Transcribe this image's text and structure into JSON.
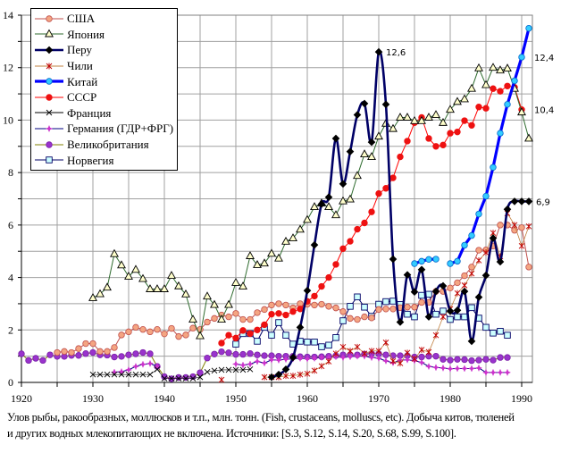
{
  "chart_data": {
    "type": "line",
    "title": "",
    "xlabel": "",
    "ylabel": "",
    "xlim": [
      1920,
      1991.5
    ],
    "ylim": [
      0,
      14
    ],
    "x_ticks": [
      1920,
      1930,
      1940,
      1950,
      1960,
      1970,
      1980,
      1990
    ],
    "y_ticks": [
      0,
      2,
      4,
      6,
      8,
      10,
      12,
      14
    ],
    "grid": true,
    "legend_position": "top-left",
    "series": [
      {
        "name": "США",
        "marker": "circle",
        "line_color": "#c0504d",
        "marker_fill": "#f4a582",
        "marker_stroke": "#c0504d",
        "line_width": 1,
        "start": 1925,
        "values": [
          1.14,
          1.18,
          1.14,
          1.29,
          1.48,
          1.48,
          1.18,
          1.18,
          1.33,
          1.81,
          1.93,
          2.1,
          2.02,
          1.93,
          2.02,
          1.85,
          2.06,
          1.75,
          1.81,
          2.07,
          2.02,
          2.3,
          2.44,
          2.57,
          2.5,
          2.63,
          2.4,
          2.4,
          2.66,
          2.78,
          2.95,
          3.0,
          2.95,
          2.84,
          3.0,
          2.98,
          2.95,
          2.98,
          2.9,
          2.84,
          2.7,
          2.44,
          2.4,
          2.5,
          2.46,
          2.78,
          2.8,
          2.8,
          2.85,
          2.87,
          2.87,
          3.05,
          3.05,
          3.47,
          3.47,
          3.6,
          3.8,
          4.07,
          4.4,
          5.04,
          5.05,
          5.2,
          6.0,
          6.0,
          5.8,
          5.9,
          4.4
        ]
      },
      {
        "name": "Япония",
        "marker": "triangle",
        "line_color": "#2e6b2e",
        "marker_fill": "#ffffcc",
        "marker_stroke": "#000000",
        "line_width": 1,
        "start": 1930,
        "values": [
          3.22,
          3.37,
          3.62,
          4.9,
          4.47,
          4.04,
          4.3,
          3.95,
          3.56,
          3.56,
          3.56,
          4.07,
          3.67,
          3.36,
          2.4,
          1.77,
          3.28,
          2.96,
          2.4,
          2.96,
          3.8,
          3.66,
          4.82,
          4.48,
          4.54,
          4.91,
          4.73,
          5.37,
          5.5,
          5.83,
          6.2,
          6.69,
          6.83,
          6.69,
          6.38,
          6.91,
          6.98,
          7.88,
          8.7,
          8.6,
          9.38,
          9.87,
          9.67,
          10.1,
          10.1,
          9.97,
          9.97,
          10.1,
          10.2,
          9.9,
          10.4,
          10.7,
          10.8,
          11.2,
          11.98,
          11.34,
          12.0,
          11.9,
          11.97,
          11.2,
          10.3,
          9.3
        ]
      },
      {
        "name": "Перу",
        "marker": "diamond",
        "line_color": "#000066",
        "marker_fill": "#000000",
        "marker_stroke": "#000000",
        "line_width": 2.6,
        "smooth": true,
        "start": 1955,
        "values": [
          0.2,
          0.3,
          0.5,
          0.95,
          2.1,
          3.5,
          5.24,
          6.8,
          7.06,
          9.3,
          7.57,
          8.8,
          10.2,
          10.63,
          9.16,
          12.6,
          10.6,
          4.7,
          2.3,
          4.1,
          3.45,
          4.3,
          2.5,
          3.47,
          3.68,
          2.72,
          2.75,
          3.47,
          1.57,
          3.25,
          4.08,
          5.5,
          4.6,
          6.6,
          6.9,
          6.9,
          6.9
        ]
      },
      {
        "name": "Чили",
        "marker": "asterisk",
        "line_color": "#c08040",
        "marker_fill": "none",
        "marker_stroke": "#c00000",
        "line_width": 0.8,
        "start": 1948,
        "values": [
          0.1,
          null,
          null,
          null,
          null,
          null,
          0.2,
          0.2,
          0.2,
          0.25,
          0.25,
          0.3,
          0.33,
          0.45,
          0.62,
          0.8,
          1.1,
          1.35,
          1.2,
          1.35,
          1.1,
          1.2,
          1.2,
          1.52,
          0.81,
          0.73,
          1.13,
          0.9,
          1.24,
          1.16,
          1.8,
          2.5,
          2.8,
          3.4,
          3.7,
          4.15,
          4.65,
          4.95,
          5.7,
          4.8,
          6.45,
          6.0,
          5.2,
          5.95
        ]
      },
      {
        "name": "Китай",
        "marker": "circle",
        "line_color": "#0000ff",
        "marker_fill": "#33ccff",
        "marker_stroke": "#0066cc",
        "line_width": 3.2,
        "start": 1975,
        "values": [
          4.53,
          4.62,
          4.69,
          4.7,
          null,
          4.53,
          4.62,
          5.23,
          5.6,
          6.42,
          7.1,
          8.2,
          9.5,
          10.6,
          11.5,
          12.4,
          13.5
        ]
      },
      {
        "name": "СССР",
        "marker": "dot",
        "line_color": "#ff0000",
        "marker_fill": "#ee1111",
        "marker_stroke": "#ee1111",
        "line_width": 1,
        "start": 1948,
        "values": [
          1.5,
          1.8,
          1.69,
          1.98,
          1.86,
          2.0,
          2.2,
          2.6,
          2.63,
          2.57,
          2.7,
          2.8,
          3.09,
          3.29,
          3.66,
          4.0,
          4.5,
          5.1,
          5.38,
          5.84,
          6.08,
          6.5,
          7.2,
          7.4,
          7.8,
          8.6,
          9.2,
          9.9,
          10.1,
          9.3,
          9.0,
          9.05,
          9.5,
          9.55,
          9.98,
          9.8,
          10.5,
          10.45,
          11.2,
          11.1,
          11.3,
          11.25,
          10.4
        ]
      },
      {
        "name": "Франция",
        "marker": "x",
        "line_color": "#000000",
        "marker_fill": "none",
        "marker_stroke": "#000000",
        "line_width": 0.6,
        "start": 1930,
        "values": [
          0.3,
          0.3,
          0.3,
          0.3,
          0.3,
          0.3,
          0.3,
          0.3,
          0.3,
          0.5,
          0.15,
          0.15,
          0.15,
          0.15,
          0.15,
          0.2,
          0.4,
          0.45,
          0.48,
          0.48,
          0.48,
          0.48,
          0.5
        ]
      },
      {
        "name": "Германия (ГДР+ФРГ)",
        "marker": "star",
        "line_color": "#000080",
        "marker_fill": "#cc33cc",
        "marker_stroke": "#cc33cc",
        "line_width": 1,
        "start": 1933,
        "values": [
          0.39,
          0.41,
          0.48,
          0.61,
          0.69,
          0.72,
          0.61,
          null,
          null,
          null,
          null,
          null,
          null,
          null,
          null,
          null,
          null,
          0.7,
          0.66,
          0.7,
          0.8,
          0.74,
          0.86,
          0.85,
          0.88,
          0.9,
          0.92,
          0.9,
          0.92,
          0.95,
          0.95,
          0.98,
          0.95,
          0.98,
          1.0,
          1.0,
          0.95,
          0.92,
          0.82,
          0.75,
          0.85,
          0.86,
          0.83,
          0.76,
          0.61,
          0.57,
          0.55,
          0.52,
          0.53,
          0.53,
          0.53,
          0.55,
          0.38,
          0.38,
          0.38,
          0.38
        ]
      },
      {
        "name": "Великобритания",
        "marker": "dot",
        "line_color": "#808000",
        "marker_fill": "#9933cc",
        "marker_stroke": "#7a1fa8",
        "line_width": 1,
        "start": 1920,
        "values": [
          1.09,
          0.84,
          0.92,
          0.84,
          1.05,
          0.99,
          0.99,
          1.03,
          1.03,
          1.1,
          1.14,
          1.05,
          1.04,
          0.97,
          0.99,
          1.05,
          1.09,
          1.14,
          1.09,
          0.61,
          0.22,
          0.14,
          0.19,
          0.19,
          0.22,
          0.37,
          0.93,
          1.08,
          1.17,
          1.13,
          1.07,
          1.07,
          1.1,
          1.05,
          1.02,
          1.02,
          1.0,
          1.0,
          1.0,
          0.98,
          0.97,
          0.97,
          0.98,
          1.0,
          1.02,
          1.05,
          1.05,
          1.05,
          1.08,
          1.1,
          1.09,
          1.05,
          1.02,
          1.02,
          1.02,
          0.97,
          0.97,
          1.0,
          1.0,
          0.88,
          0.85,
          0.88,
          0.87,
          0.83,
          0.85,
          0.88,
          0.85,
          0.95,
          0.95
        ]
      },
      {
        "name": "Норвегия",
        "marker": "square",
        "line_color": "#000066",
        "marker_fill": "#ccffff",
        "marker_stroke": "#000066",
        "line_width": 1,
        "start": 1950,
        "values": [
          1.46,
          1.86,
          1.86,
          1.57,
          2.1,
          1.8,
          2.28,
          1.8,
          1.46,
          1.57,
          1.54,
          1.54,
          1.36,
          1.42,
          1.71,
          2.35,
          2.9,
          3.26,
          2.87,
          2.52,
          2.98,
          3.08,
          3.1,
          2.97,
          2.6,
          2.5,
          3.32,
          3.36,
          2.6,
          2.72,
          2.4,
          2.5,
          2.5,
          2.85,
          2.45,
          2.1,
          1.88,
          1.95,
          1.8
        ]
      }
    ],
    "annotations": [
      {
        "text": "12,6",
        "year": 1970,
        "value": 12.6,
        "anchor": "right"
      },
      {
        "text": "12,4",
        "year": 1990,
        "value": 12.4,
        "anchor": "right-outside"
      },
      {
        "text": "10,4",
        "year": 1990,
        "value": 10.4,
        "anchor": "right-outside"
      },
      {
        "text": "6,9",
        "year": 1991,
        "value": 6.9,
        "anchor": "right"
      }
    ]
  },
  "caption": {
    "line1": "Улов рыбы, ракообразных, моллюсков и т.п., млн. тонн. (Fish, crustaceans, molluscs, etc). Добыча китов, тюленей",
    "line2": "и других водных млекопитающих не включена. Источники: [S.3, S.12, S.14, S.20, S.68, S.99, S.100]."
  }
}
